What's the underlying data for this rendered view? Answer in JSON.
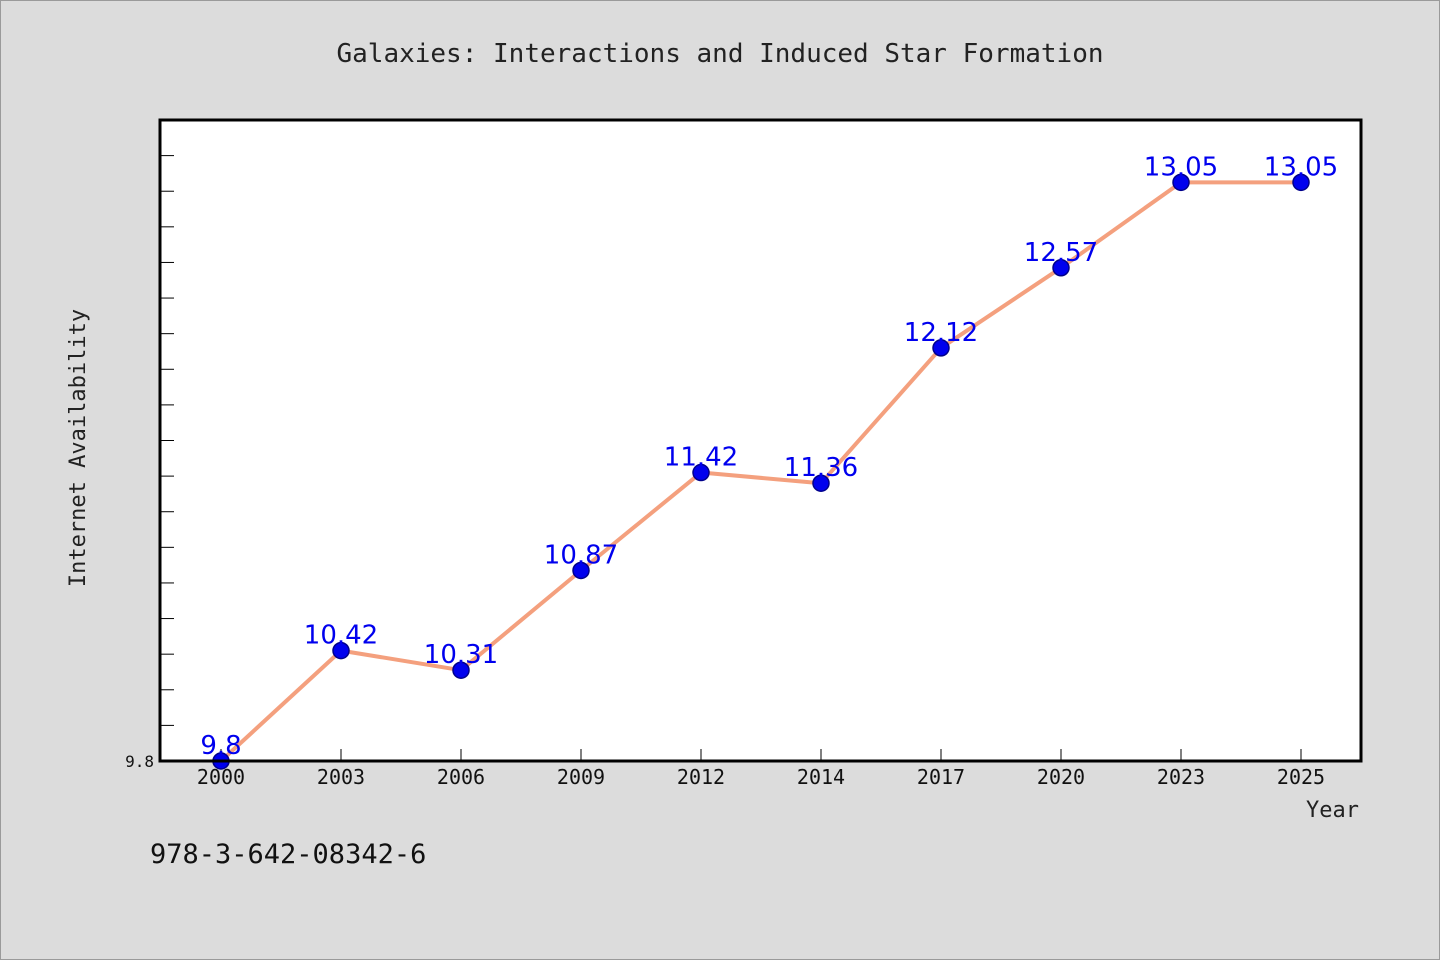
{
  "chart_data": {
    "type": "line",
    "title": "Galaxies: Interactions and Induced Star Formation",
    "xlabel": "Year",
    "ylabel": "Internet Availability",
    "categories": [
      "2000",
      "2003",
      "2006",
      "2009",
      "2012",
      "2014",
      "2017",
      "2020",
      "2023",
      "2025"
    ],
    "series": [
      {
        "values": [
          9.8,
          10.42,
          10.31,
          10.87,
          11.42,
          11.36,
          12.12,
          12.57,
          13.05,
          13.05
        ],
        "data_labels": [
          "9.8",
          "10.42",
          "10.31",
          "10.87",
          "11.42",
          "11.36",
          "12.12",
          "12.57",
          "13.05",
          "13.05"
        ]
      }
    ],
    "ylim": [
      9.8,
      13.4
    ],
    "y_tick_labels": [
      "9.8"
    ],
    "grid": false,
    "colors": {
      "line": "#f4a07e",
      "marker": "#0000ee",
      "marker_edge": "#00008b",
      "data_label": "#0000ee",
      "plot_background": "#ffffff",
      "figure_background": "#dcdcdc"
    }
  },
  "footer": {
    "isbn": "978-3-642-08342-6"
  }
}
